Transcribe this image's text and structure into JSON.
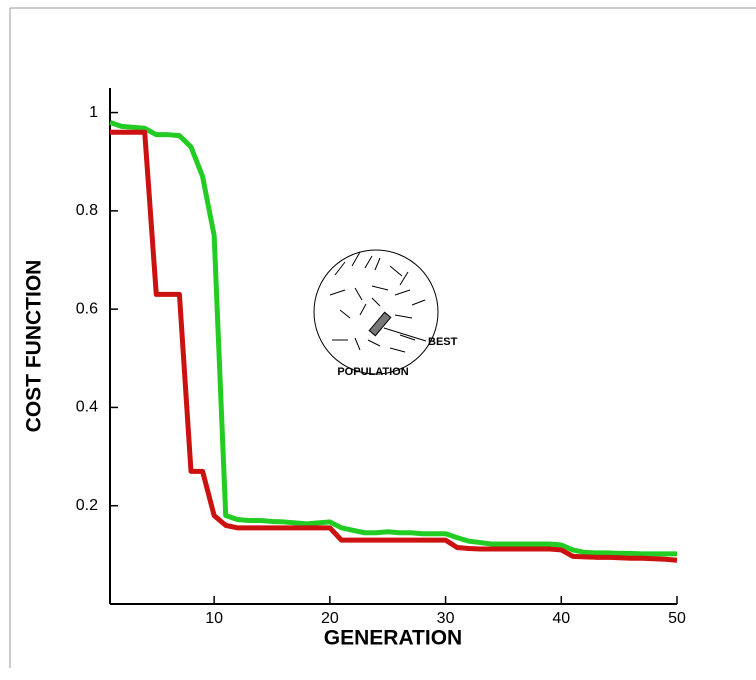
{
  "chart_data": {
    "type": "line",
    "xlabel": "GENERATION",
    "ylabel": "COST FUNCTION",
    "annotations": [
      "BEST",
      "POPULATION"
    ],
    "x": [
      1,
      2,
      3,
      4,
      5,
      6,
      7,
      8,
      9,
      10,
      11,
      12,
      13,
      14,
      15,
      16,
      17,
      18,
      19,
      20,
      21,
      22,
      23,
      24,
      25,
      26,
      27,
      28,
      29,
      30,
      31,
      32,
      33,
      34,
      35,
      36,
      37,
      38,
      39,
      40,
      41,
      42,
      43,
      44,
      45,
      46,
      47,
      48,
      49,
      50
    ],
    "series": [
      {
        "color": "#22cc22",
        "values": [
          0.98,
          0.972,
          0.97,
          0.968,
          0.955,
          0.955,
          0.953,
          0.93,
          0.87,
          0.75,
          0.18,
          0.172,
          0.17,
          0.17,
          0.168,
          0.167,
          0.165,
          0.163,
          0.165,
          0.167,
          0.155,
          0.15,
          0.145,
          0.145,
          0.147,
          0.145,
          0.145,
          0.143,
          0.143,
          0.143,
          0.135,
          0.128,
          0.125,
          0.122,
          0.122,
          0.122,
          0.122,
          0.122,
          0.122,
          0.12,
          0.11,
          0.105,
          0.104,
          0.104,
          0.103,
          0.103,
          0.102,
          0.102,
          0.102,
          0.102
        ]
      },
      {
        "color": "#cc1111",
        "values": [
          0.96,
          0.96,
          0.96,
          0.96,
          0.63,
          0.63,
          0.63,
          0.27,
          0.27,
          0.18,
          0.16,
          0.155,
          0.155,
          0.155,
          0.155,
          0.155,
          0.155,
          0.155,
          0.155,
          0.155,
          0.13,
          0.13,
          0.13,
          0.13,
          0.13,
          0.13,
          0.13,
          0.13,
          0.13,
          0.13,
          0.115,
          0.113,
          0.112,
          0.112,
          0.112,
          0.112,
          0.112,
          0.112,
          0.112,
          0.11,
          0.097,
          0.096,
          0.095,
          0.095,
          0.094,
          0.093,
          0.093,
          0.092,
          0.091,
          0.089
        ]
      }
    ],
    "xlim": [
      1,
      50
    ],
    "ylim": [
      0,
      1.05
    ],
    "xticks": [
      10,
      20,
      30,
      40,
      50
    ],
    "yticks": [
      0.2,
      0.4,
      0.6,
      0.8,
      1
    ]
  }
}
